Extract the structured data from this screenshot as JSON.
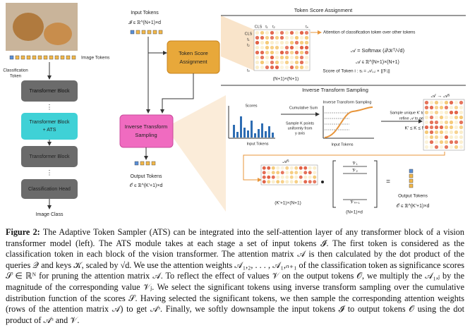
{
  "left": {
    "image_tokens": "Image Tokens",
    "classification_token": [
      "Classification",
      "Token"
    ],
    "block1": "Transformer Block",
    "ats_block": [
      "Transformer Block",
      "+ ATS"
    ],
    "block2": "Transformer Block",
    "head": "Classification Head",
    "image_class": "Image Class"
  },
  "center": {
    "input_tokens": "Input Tokens",
    "input_dim": "𝓘 ∈ ℝ^(N+1)×d",
    "score_box": [
      "Token Score",
      "Assignment"
    ],
    "sampling_box": [
      "Inverse Transform",
      "Sampling"
    ],
    "output_tokens": "Output Tokens",
    "output_dim": "𝒪 ∈ ℝ^(K′+1)×d"
  },
  "score_panel": {
    "title": "Token Score Assignment",
    "row_labels": [
      "CLS",
      "t₁",
      "t₂",
      "tₙ"
    ],
    "col_labels": [
      "CLS",
      "t₁",
      "t₂",
      "tₙ"
    ],
    "attention_note": "Attention of classification token over other tokens",
    "softmax": "𝒜 = Softmax (𝒬𝒦ᵀ/√d)",
    "a_dim": "𝒜 ∈ ℝ^(N+1)×(N+1)",
    "score_formula": "Score of Token  i :  sᵢ = 𝒜₁,ᵢ × ||𝒱ᵢ||",
    "matrix_dim": "(N+1)×(N+1)"
  },
  "sampling_panel": {
    "title": "Inverse Transform Sampling",
    "scores": "Scores",
    "cumsum": "Cumulative Sum",
    "its": "Inverse Transform Sampling",
    "sample_note": [
      "Sample unique K′ tokens and",
      "refine 𝒜 to get 𝒜ˢ"
    ],
    "k_bound": "K′ ≤ K ≤ N",
    "a_to_as": "𝒜 → 𝒜ˢ",
    "uniform_note": [
      "Sample K points",
      "uniformly from",
      "y axis"
    ],
    "input_tokens_1": "Input Tokens",
    "input_tokens_2": "Input Tokens",
    "as_label": "𝒜ˢ",
    "as_dim": "(K′+1)×(N+1)",
    "v_labels": [
      "𝒱₁",
      "𝒱₂",
      "𝒱ₙ₊₁"
    ],
    "v_dim": "(N+1)×d",
    "output_tokens": "Output Tokens",
    "output_dim": "𝒪 ∈ ℝ^(K′+1)×d"
  },
  "caption": {
    "label": "Figure 2:",
    "text": "The Adaptive Token Sampler (ATS) can be integrated into the self-attention layer of any transformer block of a vision transformer model (left). The ATS module takes at each stage a set of input tokens 𝓘. The first token is considered as the classification token in each block of the vision transformer. The attention matrix 𝒜 is then calculated by the dot product of the queries 𝒬 and keys 𝒦, scaled by √d. We use the attention weights 𝒜₁,₂, . . . , 𝒜₁,ₙ₊₁ of the classification token as significance scores 𝒮 ∈ ℝᴺ for pruning the attention matrix 𝒜. To reflect the effect of values 𝒱 on the output tokens 𝒪, we multiply the 𝒜₁,ⱼ by the magnitude of the corresponding value 𝒱ⱼ. We select the significant tokens using inverse transform sampling over the cumulative distribution function of the scores 𝒮. Having selected the significant tokens, we then sample the corresponding attention weights (rows of the attention matrix 𝒜) to get 𝒜ˢ. Finally, we softly downsample the input tokens 𝓘 to output tokens 𝒪 using the dot product of 𝒜ˢ and 𝒱."
  }
}
